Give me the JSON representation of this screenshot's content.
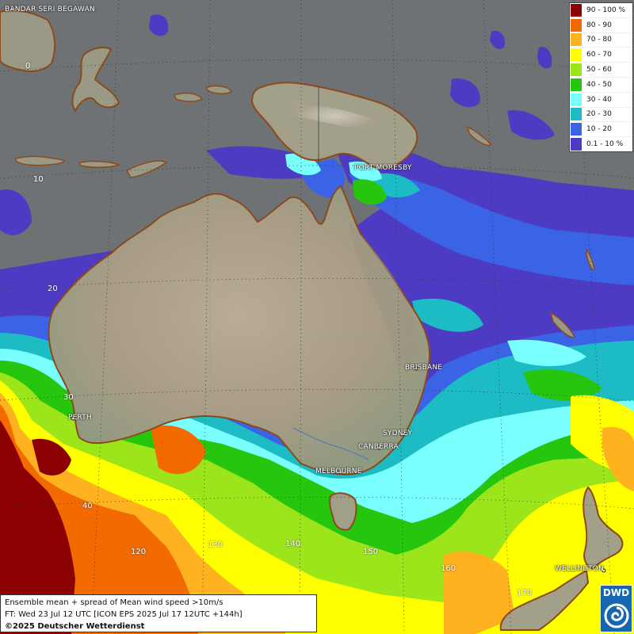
{
  "legend": {
    "items": [
      {
        "label": "90 - 100 %",
        "color": "#8b0000"
      },
      {
        "label": "80 - 90",
        "color": "#f26a00"
      },
      {
        "label": "70 - 80",
        "color": "#ffb21f"
      },
      {
        "label": "60 - 70",
        "color": "#ffff00"
      },
      {
        "label": "50 - 60",
        "color": "#9de51b"
      },
      {
        "label": "40 - 50",
        "color": "#26c60e"
      },
      {
        "label": "30 - 40",
        "color": "#7affff"
      },
      {
        "label": "20 - 30",
        "color": "#1dbcc4"
      },
      {
        "label": "10 - 20",
        "color": "#3a63e6"
      },
      {
        "label": "0.1 - 10 %",
        "color": "#4d3bc4"
      }
    ]
  },
  "cities": {
    "bandar": "BANDAR SERI BEGAWAN",
    "port_moresby": "PORT MORESBY",
    "brisbane": "BRISBANE",
    "perth": "PERTH",
    "sydney": "SYDNEY",
    "canberra": "CANBERRA",
    "melbourne": "MELBOURNE",
    "wellington": "WELLINGTON"
  },
  "grid_labels": {
    "lat_0": "0",
    "lat_10": "10",
    "lat_20": "20",
    "lat_30": "30",
    "lat_40": "40",
    "lon_120": "120",
    "lon_130": "130",
    "lon_140": "140",
    "lon_150": "150",
    "lon_160": "160",
    "lon_170": "170"
  },
  "info": {
    "line1": "Ensemble mean + spread of Mean wind speed >10m/s",
    "line2": "FT: Wed 23 Jul 12 UTC [ICON EPS 2025 Jul 17 12UTC +144h]",
    "line3": "©2025 Deutscher Wetterdienst"
  },
  "logo": {
    "text": "DWD"
  }
}
